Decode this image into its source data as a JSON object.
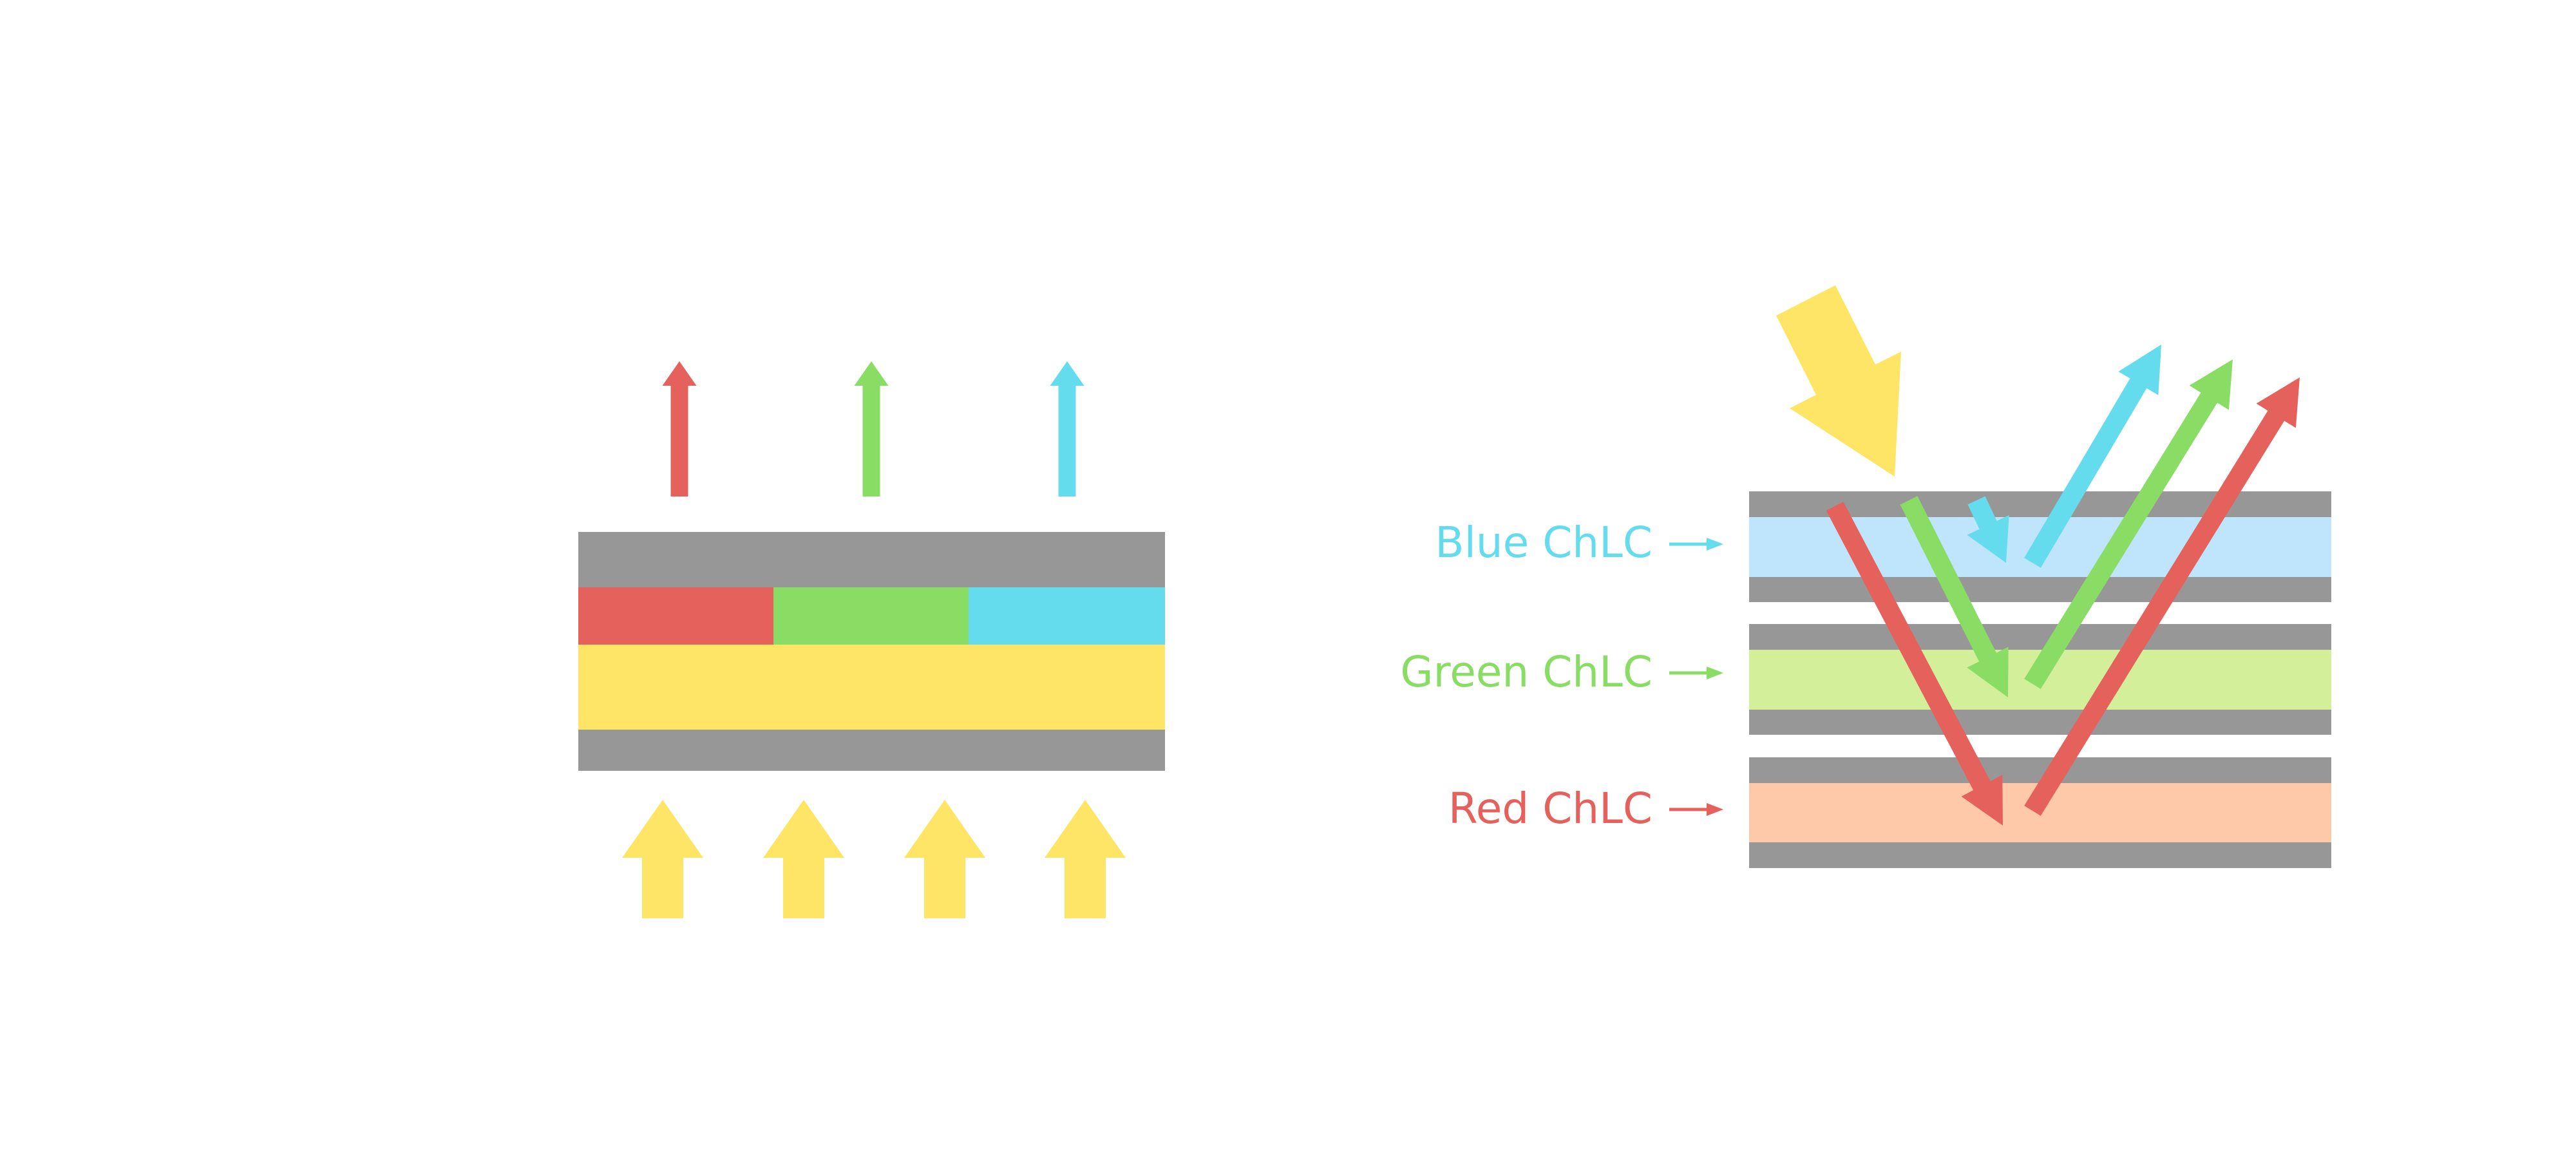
{
  "colors": {
    "red": "#E5615C",
    "green": "#89DC64",
    "blue": "#64DCEE",
    "yellow": "#FEE566",
    "gray": "#979797",
    "blue_layer": "#BFE5FC",
    "green_layer": "#D3EF9A",
    "red_layer": "#FDC9A8"
  },
  "right_panel": {
    "labels": {
      "blue": "Blue ChLC",
      "green": "Green ChLC",
      "red": "Red ChLC"
    }
  }
}
